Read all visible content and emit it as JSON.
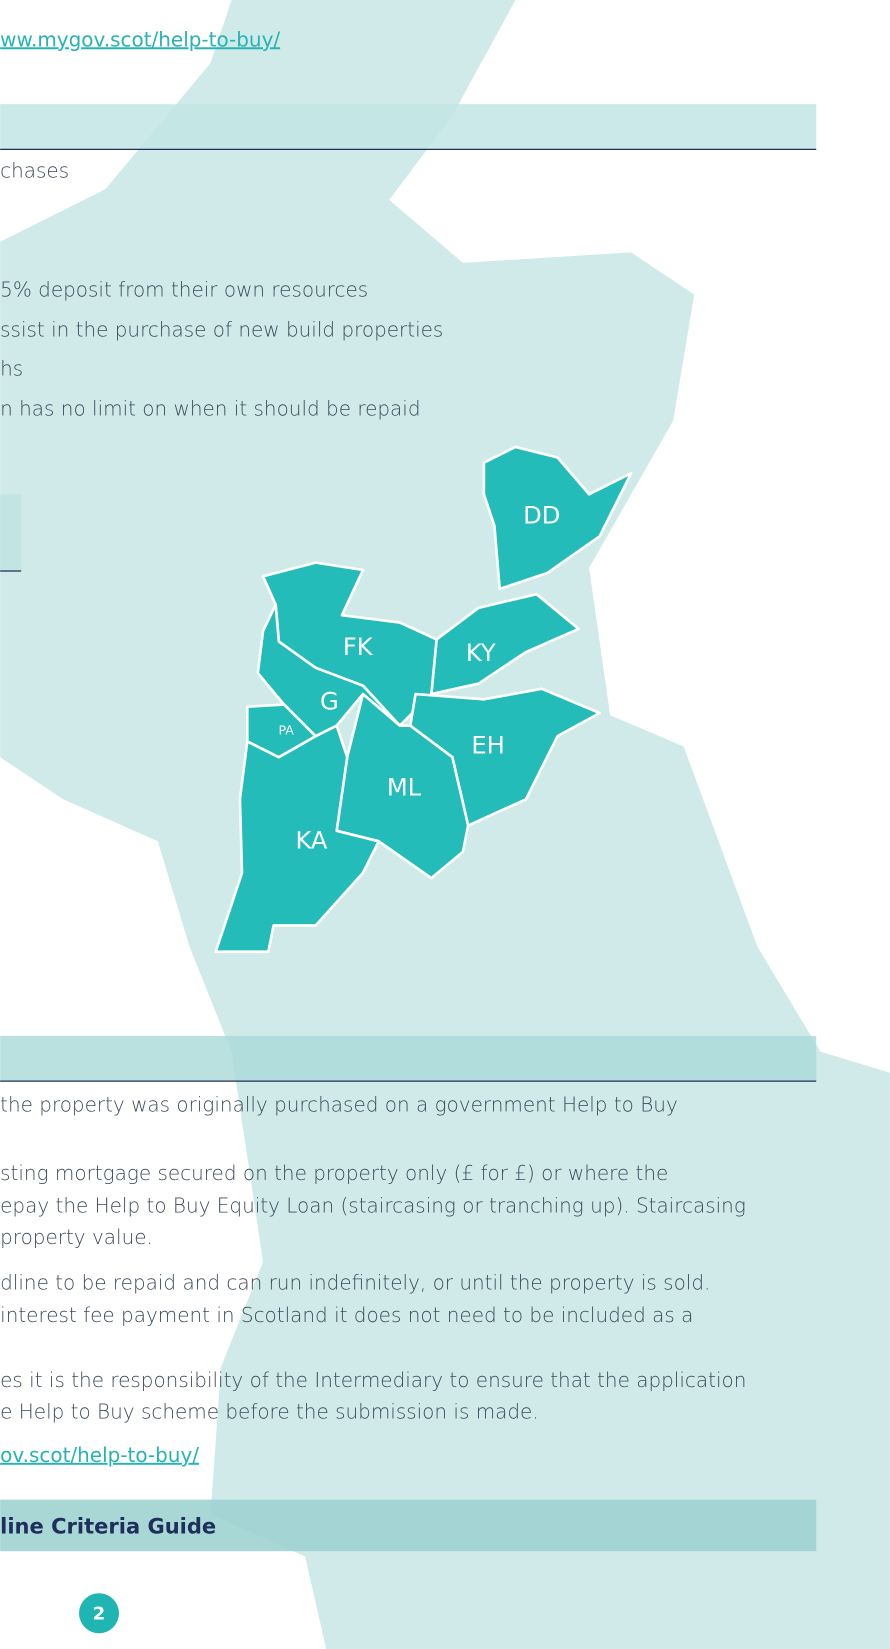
{
  "top_link": "ww.mygov.scot/help-to-buy/",
  "section1": {
    "lines": [
      "chases",
      "5% deposit from their own resources",
      "ssist in the purchase of new build properties",
      "hs",
      "n has no limit on when it should be repaid"
    ]
  },
  "map": {
    "regions": [
      "DD",
      "FK",
      "KY",
      "G",
      "PA",
      "EH",
      "ML",
      "KA"
    ]
  },
  "section2": {
    "lines": [
      "the property was originally purchased on a government Help to Buy",
      "sting mortgage secured on the property only (£ for £) or where the",
      "epay the Help to Buy Equity Loan (staircasing or tranching up). Staircasing",
      "property value.",
      "dline to be repaid and can run indefinitely, or until the property is sold.",
      "interest fee payment in Scotland it does not need to be included as a",
      "es it is the responsibility of the Intermediary to ensure that the application",
      "e Help to Buy scheme before the submission is made."
    ],
    "link": "ov.scot/help-to-buy/"
  },
  "footer": {
    "title": "line Criteria Guide",
    "page_number": "2"
  }
}
